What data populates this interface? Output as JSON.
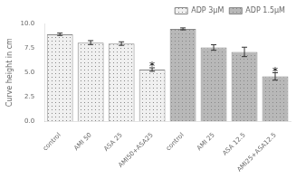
{
  "chart_data": {
    "type": "bar",
    "categories": [
      "control",
      "AMI 50",
      "ASA 25",
      "AMI50+ASA25",
      "control",
      "AMI 25",
      "ASA 12.5",
      "AMI25+ASA12.5"
    ],
    "series": [
      {
        "name": "ADP 3μM",
        "color": "#f0f0f0",
        "values": [
          8.9,
          8.05,
          7.95,
          5.3,
          null,
          null,
          null,
          null
        ],
        "errors": [
          0.12,
          0.2,
          0.18,
          0.18,
          null,
          null,
          null,
          null
        ]
      },
      {
        "name": "ADP 1.5μM",
        "color": "#b8b8b8",
        "values": [
          null,
          null,
          null,
          null,
          9.45,
          7.55,
          7.1,
          4.6
        ],
        "errors": [
          null,
          null,
          null,
          null,
          0.1,
          0.28,
          0.48,
          0.38
        ]
      }
    ],
    "y_label": "Curve height in cm",
    "ylim": [
      0.0,
      10.0
    ],
    "yticks": [
      {
        "value": 0.0,
        "label": "0.0"
      },
      {
        "value": 2.5,
        "label": "2.5"
      },
      {
        "value": 5.0,
        "label": "5.0"
      },
      {
        "value": 7.5,
        "label": "7.5"
      },
      {
        "value": 10.0,
        "label": "10.0"
      }
    ],
    "grid": false,
    "legend": "upper right",
    "annotations": [
      {
        "text": "*",
        "category": "AMI50+ASA25"
      },
      {
        "text": "*",
        "category": "AMI25+ASA12.5"
      }
    ]
  }
}
